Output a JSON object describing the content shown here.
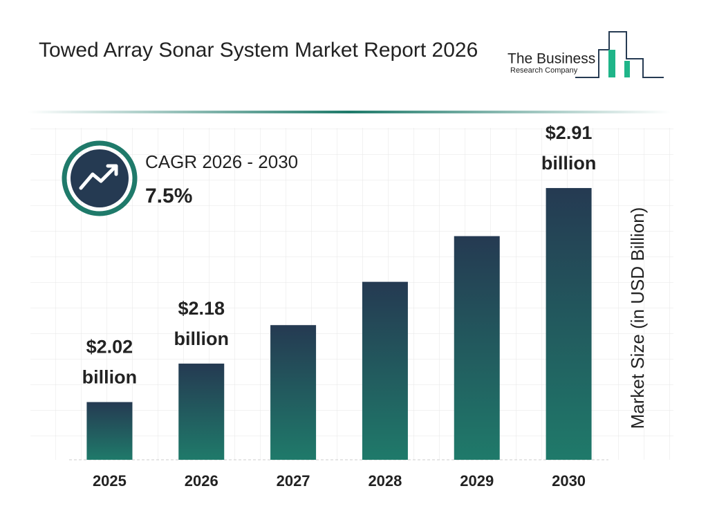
{
  "chart_data": {
    "type": "bar",
    "title": "Towed Array Sonar System Market Report 2026",
    "logo": [
      "The Business",
      "Research Company"
    ],
    "cagr_label": "CAGR 2026 - 2030",
    "cagr_value": "7.5%",
    "y_label": "Market Size (in USD Billion)",
    "categories": [
      "2025",
      "2026",
      "2027",
      "2028",
      "2029",
      "2030"
    ],
    "values": [
      2.02,
      2.18,
      2.34,
      2.52,
      2.71,
      2.91
    ],
    "value_labels": [
      "$2.02 billion",
      "$2.18 billion",
      null,
      null,
      null,
      "$2.91 billion"
    ],
    "color": [
      "#253a52",
      "#1f7a6a"
    ],
    "ylim": [
      1.78,
      3.16
    ]
  }
}
